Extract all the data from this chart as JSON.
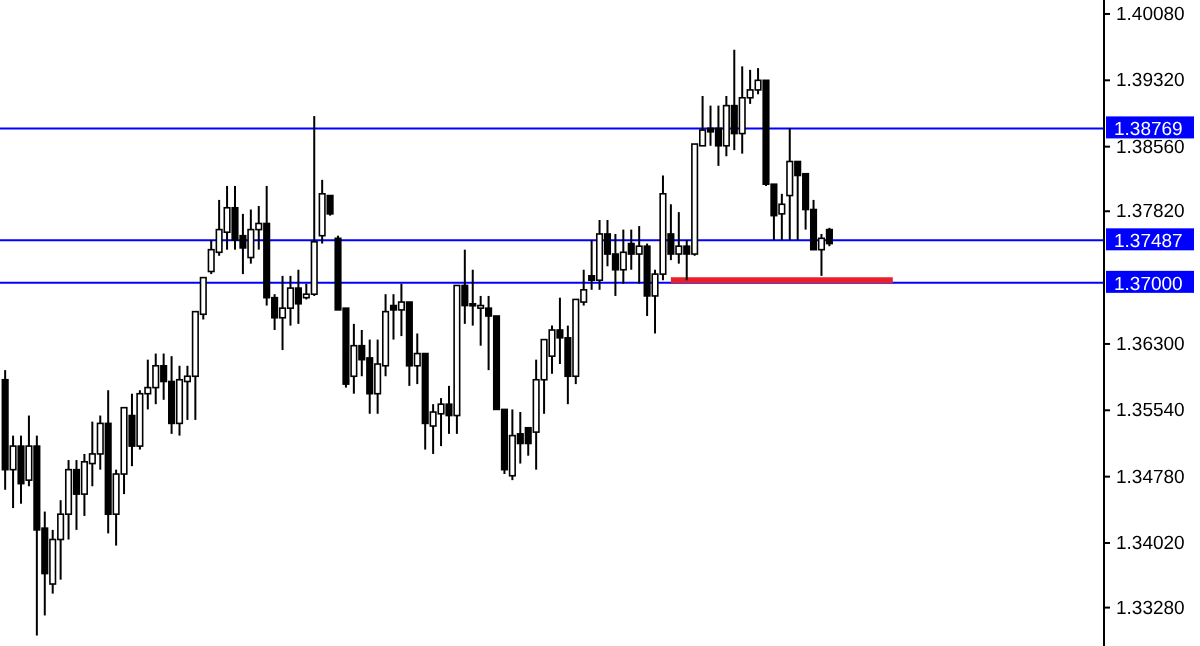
{
  "chart_data": {
    "type": "candlestick",
    "categories": [
      null,
      null,
      null,
      null,
      null,
      null,
      null,
      null,
      null,
      null,
      null,
      null,
      null,
      null,
      null,
      null,
      null,
      null,
      null,
      null,
      null,
      null,
      null,
      null,
      null,
      null,
      null,
      null,
      null,
      null,
      null,
      null,
      null,
      null,
      null,
      null,
      null,
      null,
      null,
      null,
      null,
      null,
      null,
      null,
      null,
      null,
      null,
      null,
      null,
      null,
      null,
      null,
      null,
      null,
      null,
      null,
      null,
      null,
      null,
      null,
      null,
      null,
      null,
      null,
      null,
      null,
      null,
      null,
      null,
      null,
      null,
      null,
      null,
      null,
      null,
      null,
      null,
      null,
      null,
      null,
      null,
      null,
      null,
      null,
      null,
      null,
      null,
      null,
      null,
      null,
      null,
      null,
      null,
      null,
      null,
      null,
      null,
      null,
      null,
      null,
      null,
      null,
      null,
      null,
      null,
      null,
      null,
      null,
      null,
      null,
      null,
      null,
      null,
      null,
      null,
      null,
      null,
      null,
      null,
      null,
      null,
      null,
      null,
      null,
      null,
      null,
      null,
      null,
      null,
      null,
      null,
      null,
      null,
      null,
      null,
      null,
      null,
      null,
      null
    ],
    "ohlc": [
      [
        1.3589,
        1.36,
        1.3463,
        1.3486
      ],
      [
        1.3486,
        1.3525,
        1.3442,
        1.3513
      ],
      [
        1.3513,
        1.3525,
        1.3447,
        1.347
      ],
      [
        1.3474,
        1.3548,
        1.3467,
        1.3513
      ],
      [
        1.3513,
        1.3525,
        1.3296,
        1.3417
      ],
      [
        1.3419,
        1.3438,
        1.3319,
        1.3367
      ],
      [
        1.3355,
        1.3417,
        1.3344,
        1.3406
      ],
      [
        1.3406,
        1.3451,
        1.336,
        1.3435
      ],
      [
        1.3435,
        1.3497,
        1.3406,
        1.3486
      ],
      [
        1.3486,
        1.3497,
        1.3417,
        1.3458
      ],
      [
        1.3458,
        1.3504,
        1.3433,
        1.3495
      ],
      [
        1.3493,
        1.3541,
        1.3467,
        1.3504
      ],
      [
        1.3504,
        1.3548,
        1.3486,
        1.3539
      ],
      [
        1.3539,
        1.3577,
        1.3413,
        1.3435
      ],
      [
        1.3435,
        1.3486,
        1.3399,
        1.3481
      ],
      [
        1.3481,
        1.3557,
        1.3458,
        1.3557
      ],
      [
        1.3548,
        1.3573,
        1.349,
        1.3513
      ],
      [
        1.3513,
        1.3577,
        1.3509,
        1.3573
      ],
      [
        1.3573,
        1.3612,
        1.3555,
        1.358
      ],
      [
        1.358,
        1.3619,
        1.3561,
        1.3605
      ],
      [
        1.3605,
        1.3619,
        1.3566,
        1.3587
      ],
      [
        1.3587,
        1.3616,
        1.3527,
        1.3539
      ],
      [
        1.3539,
        1.3605,
        1.3525,
        1.3589
      ],
      [
        1.3587,
        1.3605,
        1.3543,
        1.3593
      ],
      [
        1.3593,
        1.3667,
        1.3543,
        1.3667
      ],
      [
        1.3664,
        1.3706,
        1.3658,
        1.3706
      ],
      [
        1.3713,
        1.3749,
        1.371,
        1.3738
      ],
      [
        1.3735,
        1.3795,
        1.3731,
        1.3761
      ],
      [
        1.3758,
        1.3811,
        1.3738,
        1.3786
      ],
      [
        1.3786,
        1.3811,
        1.3738,
        1.3749
      ],
      [
        1.3754,
        1.3779,
        1.371,
        1.374
      ],
      [
        1.3729,
        1.3784,
        1.3722,
        1.3761
      ],
      [
        1.3761,
        1.3788,
        1.3738,
        1.3768
      ],
      [
        1.3768,
        1.3811,
        1.3674,
        1.3683
      ],
      [
        1.3683,
        1.3687,
        1.3646,
        1.366
      ],
      [
        1.366,
        1.3708,
        1.3623,
        1.3671
      ],
      [
        1.3671,
        1.3708,
        1.3651,
        1.3694
      ],
      [
        1.3694,
        1.3715,
        1.3653,
        1.3676
      ],
      [
        1.3683,
        1.3699,
        1.3681,
        1.3687
      ],
      [
        1.3687,
        1.3891,
        1.3685,
        1.3747
      ],
      [
        1.3754,
        1.3818,
        1.3745,
        1.3802
      ],
      [
        1.38,
        1.38,
        1.3777,
        1.3779
      ],
      [
        1.3751,
        1.3754,
        1.3669,
        1.3669
      ],
      [
        1.3671,
        1.3671,
        1.358,
        1.3584
      ],
      [
        1.3593,
        1.3653,
        1.3573,
        1.3628
      ],
      [
        1.3628,
        1.3646,
        1.3593,
        1.3612
      ],
      [
        1.3614,
        1.3635,
        1.355,
        1.3573
      ],
      [
        1.3573,
        1.3635,
        1.355,
        1.3607
      ],
      [
        1.3605,
        1.3687,
        1.3593,
        1.3667
      ],
      [
        1.3674,
        1.3687,
        1.3635,
        1.3669
      ],
      [
        1.3669,
        1.3699,
        1.3639,
        1.3678
      ],
      [
        1.3678,
        1.3678,
        1.3582,
        1.3605
      ],
      [
        1.3605,
        1.3642,
        1.3584,
        1.3619
      ],
      [
        1.3619,
        1.3619,
        1.3509,
        1.3539
      ],
      [
        1.3536,
        1.3561,
        1.3504,
        1.3552
      ],
      [
        1.355,
        1.3568,
        1.3513,
        1.3561
      ],
      [
        1.3561,
        1.3582,
        1.3527,
        1.3548
      ],
      [
        1.3548,
        1.3697,
        1.3527,
        1.3697
      ],
      [
        1.3697,
        1.3738,
        1.3653,
        1.3674
      ],
      [
        1.3676,
        1.3715,
        1.3651,
        1.3674
      ],
      [
        1.3671,
        1.3685,
        1.3628,
        1.3674
      ],
      [
        1.3671,
        1.3685,
        1.36,
        1.3662
      ],
      [
        1.3662,
        1.3662,
        1.3555,
        1.3555
      ],
      [
        1.3555,
        1.3555,
        1.3481,
        1.3486
      ],
      [
        1.3479,
        1.3555,
        1.3474,
        1.3525
      ],
      [
        1.3527,
        1.3552,
        1.3493,
        1.3516
      ],
      [
        1.3534,
        1.3534,
        1.3502,
        1.3516
      ],
      [
        1.3529,
        1.3612,
        1.3486,
        1.3589
      ],
      [
        1.3589,
        1.3635,
        1.355,
        1.3635
      ],
      [
        1.3616,
        1.3651,
        1.3596,
        1.3646
      ],
      [
        1.3646,
        1.3683,
        1.3607,
        1.3637
      ],
      [
        1.3637,
        1.3651,
        1.3561,
        1.3593
      ],
      [
        1.3593,
        1.3681,
        1.3584,
        1.3681
      ],
      [
        1.3678,
        1.3715,
        1.3674,
        1.3692
      ],
      [
        1.3708,
        1.3749,
        1.3692,
        1.3703
      ],
      [
        1.3703,
        1.3772,
        1.3692,
        1.3756
      ],
      [
        1.3756,
        1.3772,
        1.3719,
        1.3733
      ],
      [
        1.3733,
        1.3756,
        1.3685,
        1.3715
      ],
      [
        1.3715,
        1.3761,
        1.3699,
        1.3735
      ],
      [
        1.3745,
        1.3761,
        1.3715,
        1.3733
      ],
      [
        1.3733,
        1.3765,
        1.3699,
        1.3742
      ],
      [
        1.3742,
        1.3745,
        1.3662,
        1.3685
      ],
      [
        1.3685,
        1.3715,
        1.3642,
        1.371
      ],
      [
        1.371,
        1.3823,
        1.3703,
        1.3802
      ],
      [
        1.3756,
        1.379,
        1.3726,
        1.3733
      ],
      [
        1.3733,
        1.3781,
        1.3722,
        1.3742
      ],
      [
        1.3742,
        1.3749,
        1.3703,
        1.3733
      ],
      [
        1.3733,
        1.3859,
        1.3731,
        1.3859
      ],
      [
        1.3857,
        1.3914,
        1.3857,
        1.3875
      ],
      [
        1.3877,
        1.3903,
        1.3857,
        1.3873
      ],
      [
        1.3877,
        1.3903,
        1.3834,
        1.3857
      ],
      [
        1.3857,
        1.3914,
        1.3845,
        1.3903
      ],
      [
        1.3903,
        1.3967,
        1.3852,
        1.3871
      ],
      [
        1.3871,
        1.3948,
        1.3848,
        1.3912
      ],
      [
        1.3912,
        1.3944,
        1.3905,
        1.3921
      ],
      [
        1.3921,
        1.3946,
        1.3916,
        1.3932
      ],
      [
        1.3932,
        1.3932,
        1.3811,
        1.3813
      ],
      [
        1.3813,
        1.3813,
        1.3749,
        1.3777
      ],
      [
        1.3779,
        1.3802,
        1.3749,
        1.379
      ],
      [
        1.38,
        1.3877,
        1.3749,
        1.3839
      ],
      [
        1.3839,
        1.3839,
        1.3749,
        1.3823
      ],
      [
        1.3825,
        1.3825,
        1.3761,
        1.3784
      ],
      [
        1.3784,
        1.3795,
        1.3738,
        1.3738
      ],
      [
        1.3738,
        1.3756,
        1.3708,
        1.3751
      ],
      [
        1.3761,
        1.3763,
        1.3742,
        1.3745
      ],
      null,
      null,
      null,
      null,
      null,
      null,
      null,
      null,
      null,
      null,
      null,
      null,
      null,
      null,
      null,
      null,
      null,
      null,
      null,
      null,
      null,
      null,
      null,
      null,
      null,
      null,
      null,
      null,
      null,
      null,
      null,
      null,
      null,
      null
    ],
    "series": [
      {
        "type": "line",
        "color": "#e8202a",
        "values": [
          null,
          null,
          null,
          null,
          null,
          null,
          null,
          null,
          null,
          null,
          null,
          null,
          null,
          null,
          null,
          null,
          null,
          null,
          null,
          null,
          null,
          null,
          null,
          null,
          null,
          null,
          null,
          null,
          null,
          null,
          null,
          null,
          null,
          null,
          null,
          null,
          null,
          null,
          null,
          null,
          null,
          null,
          null,
          null,
          null,
          null,
          null,
          null,
          null,
          null,
          null,
          null,
          null,
          null,
          null,
          null,
          null,
          null,
          null,
          null,
          null,
          null,
          null,
          null,
          null,
          null,
          null,
          null,
          null,
          null,
          null,
          null,
          null,
          null,
          null,
          null,
          null,
          null,
          null,
          null,
          null,
          null,
          null,
          null,
          1.3703,
          1.3703,
          1.3703,
          1.3703,
          1.3703,
          1.3703,
          1.3703,
          1.3703,
          1.3703,
          1.3703,
          1.3703,
          1.3703,
          1.3703,
          1.3703,
          1.3703,
          1.3703,
          1.3703,
          1.3703,
          1.3703,
          1.3703,
          1.3703,
          1.3703,
          1.3703,
          1.3703,
          1.3703,
          1.3703,
          1.3703,
          1.3703,
          1.3703,
          null,
          null,
          null,
          null,
          null,
          null,
          null,
          null,
          null,
          null,
          null,
          null,
          null,
          null,
          null,
          null,
          null,
          null,
          null,
          null,
          null,
          null,
          null,
          null,
          null,
          null
        ]
      }
    ],
    "ylim": [
      1.3284,
      1.4024
    ],
    "yticks": [
      {
        "value": 1.4008,
        "label": "1.40080"
      },
      {
        "value": 1.3932,
        "label": "1.39320"
      },
      {
        "value": 1.3856,
        "label": "1.38560"
      },
      {
        "value": 1.3782,
        "label": "1.37820"
      },
      {
        "value": 1.363,
        "label": "1.36300"
      },
      {
        "value": 1.3554,
        "label": "1.35540"
      },
      {
        "value": 1.3478,
        "label": "1.34780"
      },
      {
        "value": 1.3402,
        "label": "1.34020"
      },
      {
        "value": 1.3328,
        "label": "1.33280"
      }
    ],
    "ref_lines": [
      {
        "axis": "y",
        "value": 1.38769,
        "label": "1.38769",
        "color": "#0000ff"
      },
      {
        "axis": "y",
        "value": 1.37487,
        "label": "1.37487",
        "color": "#0000ff"
      },
      {
        "axis": "y",
        "value": 1.37,
        "label": "1.37000",
        "color": "#0000ff"
      }
    ],
    "tick_labels": "y",
    "grid": false
  }
}
